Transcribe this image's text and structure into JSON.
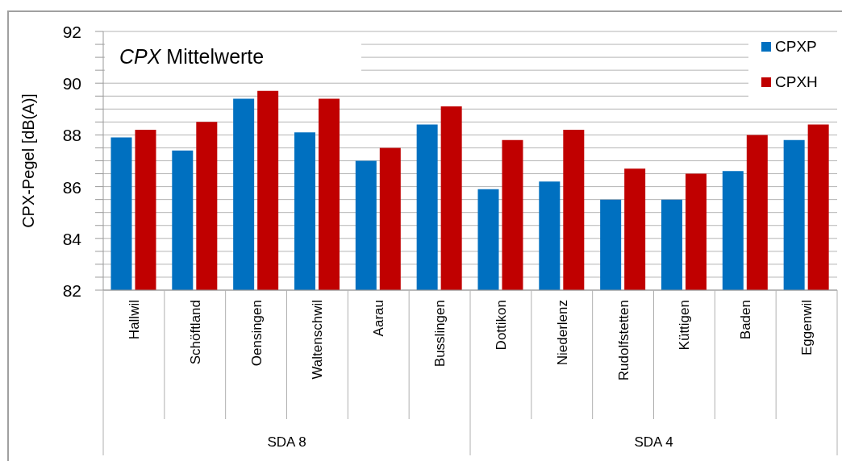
{
  "chart_data": {
    "type": "bar",
    "title": "CPX Mittelwerte",
    "ylabel": "CPX-Pegel [dB(A)]",
    "categories": [
      "Hallwil",
      "Schöftland",
      "Oensingen",
      "Waltenschwil",
      "Aarau",
      "Busslingen",
      "Dottikon",
      "Niederlenz",
      "Rudolfstetten",
      "Küttigen",
      "Baden",
      "Eggenwil"
    ],
    "series": [
      {
        "name": "CPXP",
        "color": "#0070c0",
        "values": [
          87.9,
          87.4,
          89.4,
          88.1,
          87.0,
          88.4,
          85.9,
          86.2,
          85.5,
          85.5,
          86.6,
          87.8
        ]
      },
      {
        "name": "CPXH",
        "color": "#c00000",
        "values": [
          88.2,
          88.5,
          89.7,
          89.4,
          87.5,
          89.1,
          87.8,
          88.2,
          86.7,
          86.5,
          88.0,
          88.4
        ]
      }
    ],
    "ylim": [
      82,
      92
    ],
    "yticks": [
      82,
      {
        "value": 82.5,
        "label": null
      },
      {
        "value": 83,
        "label": null
      },
      {
        "value": 83.5,
        "label": null
      },
      84,
      {
        "value": 84.5,
        "label": null
      },
      {
        "value": 85,
        "label": null
      },
      {
        "value": 85.5,
        "label": null
      },
      86,
      {
        "value": 86.5,
        "label": null
      },
      {
        "value": 87,
        "label": null
      },
      {
        "value": 87.5,
        "label": null
      },
      88,
      {
        "value": 88.5,
        "label": null
      },
      {
        "value": 89,
        "label": null
      },
      {
        "value": 89.5,
        "label": null
      },
      90,
      {
        "value": 90.5,
        "label": null
      },
      {
        "value": 91,
        "label": null
      },
      {
        "value": 91.5,
        "label": null
      },
      92
    ],
    "grid": "y",
    "legend": "top right",
    "annotations": [
      "SDA 8",
      "SDA 4"
    ]
  }
}
